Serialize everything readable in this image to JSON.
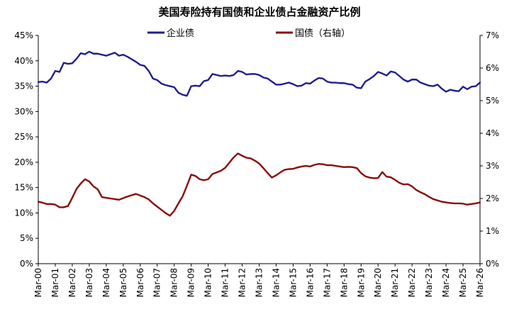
{
  "chart_data": {
    "type": "line",
    "title": "美国寿险持有国债和企业债占金融资产比例",
    "x_tick_labels": [
      "Mar-00",
      "Mar-01",
      "Mar-02",
      "Mar-03",
      "Mar-04",
      "Mar-05",
      "Mar-06",
      "Mar-07",
      "Mar-08",
      "Mar-09",
      "Mar-10",
      "Mar-11",
      "Mar-12",
      "Mar-13",
      "Mar-14",
      "Mar-15",
      "Mar-16",
      "Mar-17",
      "Mar-18",
      "Mar-19",
      "Mar-20",
      "Mar-21",
      "Mar-22",
      "Mar-23",
      "Mar-24",
      "Mar-25",
      "Mar-26"
    ],
    "x_range": [
      2000.0,
      2026.0
    ],
    "y_left": {
      "range": [
        0,
        45
      ],
      "ticks": [
        0,
        5,
        10,
        15,
        20,
        25,
        30,
        35,
        40,
        45
      ],
      "tick_suffix": "%"
    },
    "y_right": {
      "range": [
        0,
        7
      ],
      "ticks": [
        0,
        1,
        2,
        3,
        4,
        5,
        6,
        7
      ],
      "tick_suffix": "%"
    },
    "legend_position": "top-center",
    "grid": false,
    "series": [
      {
        "name": "企业债",
        "axis": "left",
        "color": "#1F1F8F",
        "x": [
          2000.0,
          2000.25,
          2000.5,
          2000.75,
          2001.0,
          2001.25,
          2001.5,
          2001.75,
          2002.0,
          2002.25,
          2002.5,
          2002.75,
          2003.0,
          2003.25,
          2003.5,
          2003.75,
          2004.0,
          2004.25,
          2004.5,
          2004.75,
          2005.0,
          2005.25,
          2005.5,
          2005.75,
          2006.0,
          2006.25,
          2006.5,
          2006.75,
          2007.0,
          2007.25,
          2007.5,
          2007.75,
          2008.0,
          2008.25,
          2008.5,
          2008.75,
          2009.0,
          2009.25,
          2009.5,
          2009.75,
          2010.0,
          2010.25,
          2010.5,
          2010.75,
          2011.0,
          2011.25,
          2011.5,
          2011.75,
          2012.0,
          2012.25,
          2012.5,
          2012.75,
          2013.0,
          2013.25,
          2013.5,
          2013.75,
          2014.0,
          2014.25,
          2014.5,
          2014.75,
          2015.0,
          2015.25,
          2015.5,
          2015.75,
          2016.0,
          2016.25,
          2016.5,
          2016.75,
          2017.0,
          2017.25,
          2017.5,
          2017.75,
          2018.0,
          2018.25,
          2018.5,
          2018.75,
          2019.0,
          2019.25,
          2019.5,
          2019.75,
          2020.0,
          2020.25,
          2020.5,
          2020.75,
          2021.0,
          2021.25,
          2021.5,
          2021.75,
          2022.0,
          2022.25,
          2022.5,
          2022.75,
          2023.0,
          2023.25,
          2023.5,
          2023.75,
          2024.0,
          2024.25,
          2024.5,
          2024.75,
          2025.0,
          2025.25,
          2025.5,
          2025.75,
          2026.0
        ],
        "values": [
          35.8,
          35.9,
          35.7,
          36.5,
          38.0,
          37.8,
          39.6,
          39.4,
          39.5,
          40.4,
          41.5,
          41.3,
          41.8,
          41.4,
          41.4,
          41.2,
          41.0,
          41.3,
          41.6,
          41.0,
          41.2,
          40.8,
          40.3,
          39.8,
          39.2,
          39.0,
          38.0,
          36.5,
          36.2,
          35.5,
          35.2,
          35.0,
          34.8,
          33.7,
          33.3,
          33.1,
          35.0,
          35.1,
          35.0,
          36.0,
          36.2,
          37.4,
          37.2,
          37.0,
          37.1,
          37.0,
          37.2,
          38.0,
          37.8,
          37.3,
          37.4,
          37.4,
          37.2,
          36.7,
          36.5,
          35.9,
          35.3,
          35.3,
          35.5,
          35.7,
          35.4,
          35.0,
          35.1,
          35.6,
          35.5,
          36.1,
          36.6,
          36.5,
          35.9,
          35.7,
          35.7,
          35.6,
          35.6,
          35.4,
          35.3,
          34.7,
          34.6,
          35.9,
          36.4,
          37.0,
          37.8,
          37.5,
          37.1,
          37.9,
          37.7,
          37.0,
          36.3,
          35.9,
          36.3,
          36.3,
          35.7,
          35.4,
          35.1,
          35.0,
          35.3,
          34.5,
          33.9,
          34.3,
          34.1,
          34.0,
          34.9,
          34.4,
          34.9,
          35.0,
          35.7
        ]
      },
      {
        "name": "国债（右轴）",
        "axis": "right",
        "color": "#8B0A0A",
        "x": [
          2000.0,
          2000.25,
          2000.5,
          2000.75,
          2001.0,
          2001.25,
          2001.5,
          2001.75,
          2002.0,
          2002.25,
          2002.5,
          2002.75,
          2003.0,
          2003.25,
          2003.5,
          2003.75,
          2004.0,
          2004.25,
          2004.5,
          2004.75,
          2005.0,
          2005.25,
          2005.5,
          2005.75,
          2006.0,
          2006.25,
          2006.5,
          2006.75,
          2007.0,
          2007.25,
          2007.5,
          2007.75,
          2008.0,
          2008.25,
          2008.5,
          2008.75,
          2009.0,
          2009.25,
          2009.5,
          2009.75,
          2010.0,
          2010.25,
          2010.5,
          2010.75,
          2011.0,
          2011.25,
          2011.5,
          2011.75,
          2012.0,
          2012.25,
          2012.5,
          2012.75,
          2013.0,
          2013.25,
          2013.5,
          2013.75,
          2014.0,
          2014.25,
          2014.5,
          2014.75,
          2015.0,
          2015.25,
          2015.5,
          2015.75,
          2016.0,
          2016.25,
          2016.5,
          2016.75,
          2017.0,
          2017.25,
          2017.5,
          2017.75,
          2018.0,
          2018.25,
          2018.5,
          2018.75,
          2019.0,
          2019.25,
          2019.5,
          2019.75,
          2020.0,
          2020.25,
          2020.5,
          2020.75,
          2021.0,
          2021.25,
          2021.5,
          2021.75,
          2022.0,
          2022.25,
          2022.5,
          2022.75,
          2023.0,
          2023.25,
          2023.5,
          2023.75,
          2024.0,
          2024.25,
          2024.5,
          2024.75,
          2025.0,
          2025.25,
          2025.5,
          2025.75,
          2026.0
        ],
        "values": [
          1.9,
          1.87,
          1.83,
          1.83,
          1.81,
          1.73,
          1.73,
          1.77,
          2.02,
          2.29,
          2.46,
          2.59,
          2.52,
          2.37,
          2.28,
          2.04,
          2.02,
          2.0,
          1.98,
          1.96,
          2.01,
          2.06,
          2.1,
          2.14,
          2.09,
          2.04,
          1.97,
          1.85,
          1.75,
          1.65,
          1.55,
          1.47,
          1.62,
          1.85,
          2.07,
          2.39,
          2.73,
          2.69,
          2.59,
          2.56,
          2.59,
          2.75,
          2.8,
          2.85,
          2.94,
          3.1,
          3.26,
          3.38,
          3.31,
          3.25,
          3.23,
          3.16,
          3.07,
          2.93,
          2.78,
          2.64,
          2.71,
          2.8,
          2.88,
          2.9,
          2.91,
          2.95,
          2.98,
          3.0,
          2.98,
          3.03,
          3.06,
          3.05,
          3.02,
          3.02,
          3.0,
          2.98,
          2.96,
          2.97,
          2.96,
          2.93,
          2.78,
          2.68,
          2.64,
          2.62,
          2.63,
          2.81,
          2.67,
          2.65,
          2.57,
          2.48,
          2.43,
          2.44,
          2.37,
          2.26,
          2.19,
          2.13,
          2.05,
          1.98,
          1.94,
          1.9,
          1.88,
          1.86,
          1.85,
          1.85,
          1.84,
          1.81,
          1.83,
          1.85,
          1.88
        ]
      }
    ]
  }
}
